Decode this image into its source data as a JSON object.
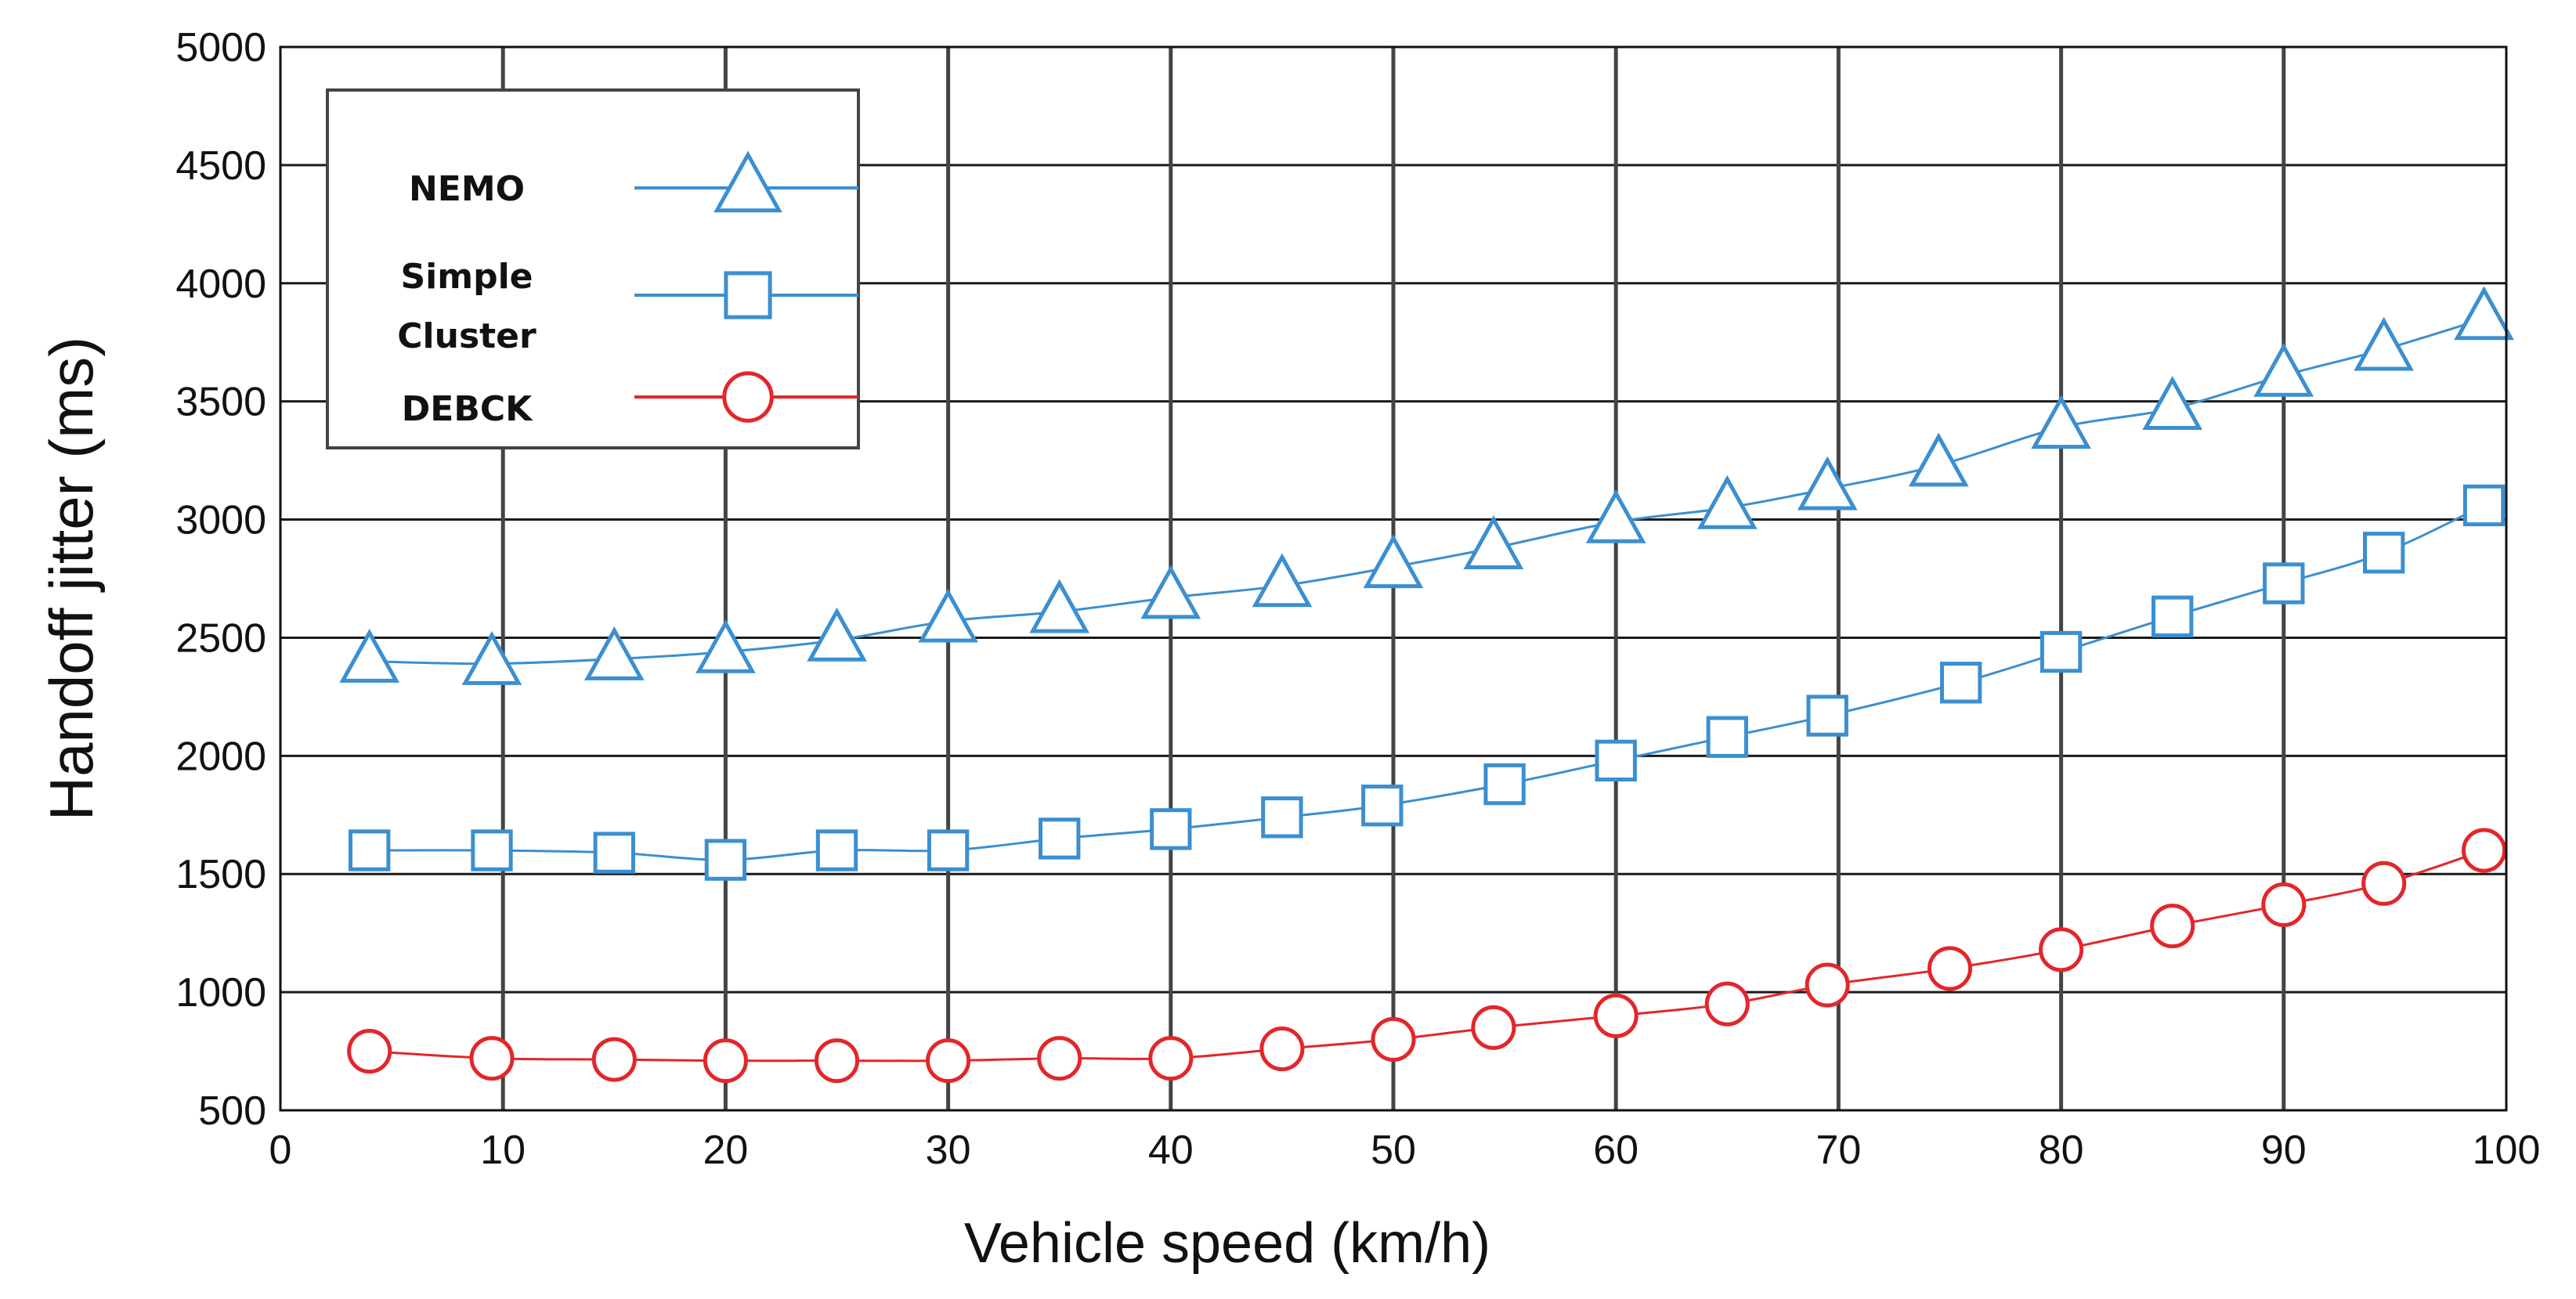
{
  "chart_data": {
    "type": "line",
    "xlabel": "Vehicle speed (km/h)",
    "ylabel": "Handoff jitter (ms)",
    "xlim": [
      0,
      100
    ],
    "ylim": [
      500,
      5000
    ],
    "x_ticks": [
      0,
      10,
      20,
      30,
      40,
      50,
      60,
      70,
      80,
      90,
      100
    ],
    "y_ticks": [
      500,
      1000,
      1500,
      2000,
      2500,
      3000,
      3500,
      4000,
      4500,
      5000
    ],
    "grid": true,
    "legend_position": "top-left",
    "series": [
      {
        "name": "NEMO",
        "legend_lines": [
          "NEMO"
        ],
        "color": "#3b8fd0",
        "marker": "triangle",
        "x": [
          4,
          9.5,
          15,
          20,
          25,
          30,
          35,
          40,
          45,
          50,
          54.5,
          60,
          65,
          69.5,
          74.5,
          80,
          85,
          90,
          94.5,
          99
        ],
        "y": [
          2400,
          2390,
          2410,
          2440,
          2490,
          2570,
          2610,
          2670,
          2720,
          2800,
          2880,
          2990,
          3050,
          3130,
          3230,
          3390,
          3470,
          3610,
          3720,
          3850
        ]
      },
      {
        "name": "Simple Cluster",
        "legend_lines": [
          "Simple",
          "Cluster"
        ],
        "color": "#3b8fd0",
        "marker": "square",
        "x": [
          4,
          9.5,
          15,
          20,
          25,
          30,
          35,
          40,
          45,
          49.5,
          55,
          60,
          65,
          69.5,
          75.5,
          80,
          85,
          90,
          94.5,
          99
        ],
        "y": [
          1600,
          1600,
          1590,
          1560,
          1600,
          1600,
          1650,
          1690,
          1740,
          1790,
          1880,
          1980,
          2080,
          2170,
          2310,
          2440,
          2590,
          2730,
          2860,
          3060
        ]
      },
      {
        "name": "DEBCK",
        "legend_lines": [
          "DEBCK"
        ],
        "color": "#e3262a",
        "marker": "circle",
        "x": [
          4,
          9.5,
          15,
          20,
          25,
          30,
          35,
          40,
          45,
          50,
          54.5,
          60,
          65,
          69.5,
          75,
          80,
          85,
          90,
          94.5,
          99
        ],
        "y": [
          750,
          720,
          715,
          710,
          710,
          710,
          720,
          720,
          760,
          800,
          850,
          900,
          950,
          1030,
          1100,
          1180,
          1280,
          1370,
          1460,
          1600
        ]
      }
    ]
  }
}
